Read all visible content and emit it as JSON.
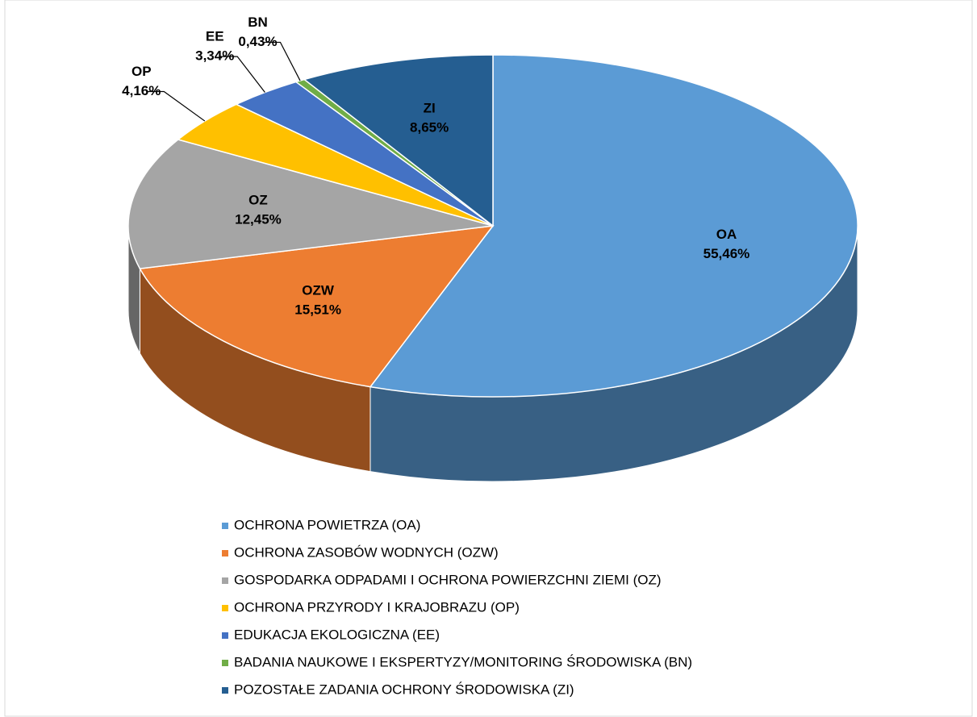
{
  "chart_data": {
    "type": "pie",
    "categories": [
      "OCHRONA POWIETRZA (OA)",
      "OCHRONA ZASOBÓW WODNYCH (OZW)",
      "GOSPODARKA ODPADAMI I OCHRONA POWIERZCHNI ZIEMI (OZ)",
      "OCHRONA PRZYRODY I KRAJOBRAZU (OP)",
      "EDUKACJA EKOLOGICZNA (EE)",
      "BADANIA NAUKOWE I EKSPERTYZY/MONITORING ŚRODOWISKA (BN)",
      "POZOSTAŁE ZADANIA OCHRONY ŚRODOWISKA (ZI)"
    ],
    "short_labels": [
      "OA",
      "OZW",
      "OZ",
      "OP",
      "EE",
      "BN",
      "ZI"
    ],
    "values": [
      55.46,
      15.51,
      12.45,
      4.16,
      3.34,
      0.43,
      8.65
    ],
    "value_labels": [
      "55,46%",
      "15,51%",
      "12,45%",
      "4,16%",
      "3,34%",
      "0,43%",
      "8,65%"
    ],
    "colors": [
      "#5b9bd5",
      "#ed7d31",
      "#a5a5a5",
      "#ffc000",
      "#4472c4",
      "#70ad47",
      "#255e91"
    ],
    "legend": "bottom"
  }
}
